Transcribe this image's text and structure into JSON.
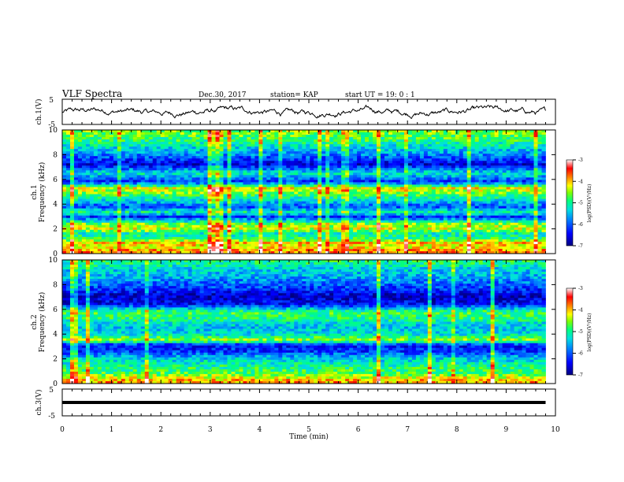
{
  "header": {
    "title": "VLF Spectra",
    "date": "Dec.30, 2017",
    "station": "station= KAP",
    "start": "start  UT =   19: 0   : 1"
  },
  "colors": {
    "frame": "#000000",
    "waveform": "#000000",
    "colormap": [
      "#000080",
      "#0000ff",
      "#0080ff",
      "#00e0e0",
      "#00ff80",
      "#80ff00",
      "#ffff00",
      "#ff8000",
      "#ff0000",
      "#ffffff"
    ]
  },
  "chart_data": [
    {
      "type": "line",
      "panel": "ch.1 waveform",
      "ylabel": "ch.1(V)",
      "ylim": [
        -5,
        5
      ],
      "yticks": [
        "5",
        "-5"
      ],
      "xlim": [
        0,
        10
      ],
      "note": "noisy signal oscillating roughly between -3 and 2 V over 0 to 9.8 min"
    },
    {
      "type": "heatmap",
      "panel": "ch.1 spectrogram",
      "ylabel": "ch.1\nFrequency  (kHz)",
      "ylabel_lines": [
        "ch.1",
        "Frequency  (kHz)"
      ],
      "ylim": [
        0,
        10
      ],
      "yticks": [
        "0",
        "2",
        "4",
        "6",
        "8",
        "10"
      ],
      "xlim": [
        0,
        10
      ],
      "data_end_min": 9.8,
      "colorbar": {
        "label": "log(PSD)(V²/Hz)",
        "range": [
          -7,
          -3
        ],
        "ticks": [
          "-3",
          "-4",
          "-5",
          "-6",
          "-7"
        ]
      },
      "bands": [
        {
          "f": 0.2,
          "level": -3.8
        },
        {
          "f": 0.5,
          "level": -4.2
        },
        {
          "f": 0.9,
          "level": -4.0
        },
        {
          "f": 1.2,
          "level": -4.9
        },
        {
          "f": 1.6,
          "level": -5.2
        },
        {
          "f": 2.0,
          "level": -4.3
        },
        {
          "f": 2.4,
          "level": -4.6
        },
        {
          "f": 3.0,
          "level": -6.3
        },
        {
          "f": 3.3,
          "level": -5.0
        },
        {
          "f": 3.8,
          "level": -6.1
        },
        {
          "f": 4.3,
          "level": -5.3
        },
        {
          "f": 5.0,
          "level": -4.5
        },
        {
          "f": 5.3,
          "level": -4.2
        },
        {
          "f": 5.8,
          "level": -6.3
        },
        {
          "f": 6.5,
          "level": -5.2
        },
        {
          "f": 7.2,
          "level": -6.6
        },
        {
          "f": 8.0,
          "level": -5.8
        },
        {
          "f": 9.0,
          "level": -5.0
        },
        {
          "f": 9.7,
          "level": -4.6
        }
      ]
    },
    {
      "type": "heatmap",
      "panel": "ch.2 spectrogram",
      "ylabel": "ch.2\nFrequency  (kHz)",
      "ylabel_lines": [
        "ch.2",
        "Frequency  (kHz)"
      ],
      "ylim": [
        0,
        10
      ],
      "yticks": [
        "0",
        "2",
        "4",
        "6",
        "8",
        "10"
      ],
      "xlim": [
        0,
        10
      ],
      "data_end_min": 9.8,
      "colorbar": {
        "label": "log(PSD)(V²/Hz)",
        "range": [
          -7,
          -3
        ],
        "ticks": [
          "-3",
          "-4",
          "-5",
          "-6",
          "-7"
        ]
      },
      "bands": [
        {
          "f": 0.2,
          "level": -3.9
        },
        {
          "f": 0.5,
          "level": -4.3
        },
        {
          "f": 0.9,
          "level": -4.8
        },
        {
          "f": 1.4,
          "level": -5.0
        },
        {
          "f": 2.0,
          "level": -5.4
        },
        {
          "f": 2.6,
          "level": -6.2
        },
        {
          "f": 3.1,
          "level": -6.4
        },
        {
          "f": 3.5,
          "level": -4.4
        },
        {
          "f": 4.0,
          "level": -5.3
        },
        {
          "f": 4.6,
          "level": -5.5
        },
        {
          "f": 5.2,
          "level": -5.0
        },
        {
          "f": 5.8,
          "level": -4.8
        },
        {
          "f": 6.4,
          "level": -6.4
        },
        {
          "f": 7.0,
          "level": -6.7
        },
        {
          "f": 7.8,
          "level": -6.1
        },
        {
          "f": 8.6,
          "level": -5.6
        },
        {
          "f": 9.2,
          "level": -5.4
        },
        {
          "f": 9.8,
          "level": -5.0
        }
      ]
    },
    {
      "type": "line",
      "panel": "ch.3 waveform",
      "ylabel": "ch.3(V)",
      "ylim": [
        -5,
        5
      ],
      "yticks": [
        "5",
        "-5"
      ],
      "xlim": [
        0,
        10
      ],
      "constant_value": 0,
      "xlabel": "Time  (min)",
      "xticks": [
        "0",
        "1",
        "2",
        "3",
        "4",
        "5",
        "6",
        "7",
        "8",
        "9",
        "10"
      ]
    }
  ]
}
